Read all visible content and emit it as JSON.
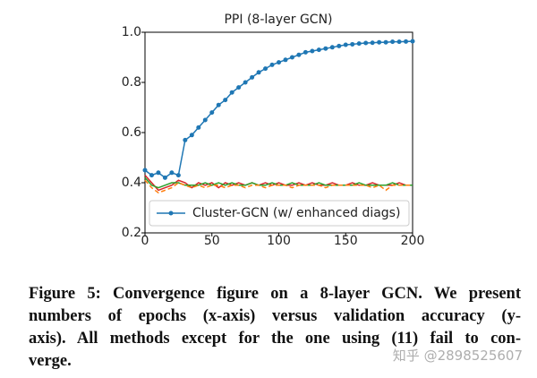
{
  "chart_data": {
    "type": "line",
    "title": "PPI (8-layer GCN)",
    "x": [
      0,
      5,
      10,
      15,
      20,
      25,
      30,
      35,
      40,
      45,
      50,
      55,
      60,
      65,
      70,
      75,
      80,
      85,
      90,
      95,
      100,
      105,
      110,
      115,
      120,
      125,
      130,
      135,
      140,
      145,
      150,
      155,
      160,
      165,
      170,
      175,
      180,
      185,
      190,
      195,
      200
    ],
    "series": [
      {
        "color": "#d62728",
        "linestyle": "solid",
        "marker": "none",
        "values": [
          0.43,
          0.4,
          0.37,
          0.38,
          0.39,
          0.41,
          0.4,
          0.38,
          0.4,
          0.39,
          0.4,
          0.38,
          0.4,
          0.39,
          0.4,
          0.39,
          0.4,
          0.39,
          0.4,
          0.39,
          0.4,
          0.39,
          0.39,
          0.4,
          0.39,
          0.4,
          0.39,
          0.39,
          0.4,
          0.39,
          0.39,
          0.4,
          0.39,
          0.39,
          0.4,
          0.39,
          0.39,
          0.39,
          0.4,
          0.39,
          0.39
        ]
      },
      {
        "color": "#2ca02c",
        "linestyle": "solid",
        "marker": "none",
        "values": [
          0.42,
          0.39,
          0.38,
          0.39,
          0.4,
          0.4,
          0.39,
          0.39,
          0.39,
          0.4,
          0.39,
          0.4,
          0.39,
          0.4,
          0.39,
          0.39,
          0.4,
          0.39,
          0.39,
          0.4,
          0.39,
          0.39,
          0.4,
          0.39,
          0.39,
          0.39,
          0.4,
          0.39,
          0.39,
          0.39,
          0.39,
          0.39,
          0.4,
          0.39,
          0.39,
          0.39,
          0.39,
          0.4,
          0.39,
          0.39,
          0.39
        ]
      },
      {
        "color": "#ff7f0e",
        "linestyle": "dashed",
        "marker": "none",
        "values": [
          0.41,
          0.38,
          0.36,
          0.37,
          0.38,
          0.4,
          0.39,
          0.38,
          0.39,
          0.38,
          0.39,
          0.39,
          0.38,
          0.39,
          0.39,
          0.38,
          0.39,
          0.39,
          0.38,
          0.39,
          0.39,
          0.39,
          0.38,
          0.39,
          0.39,
          0.39,
          0.39,
          0.38,
          0.39,
          0.39,
          0.39,
          0.39,
          0.39,
          0.39,
          0.38,
          0.39,
          0.37,
          0.39,
          0.39,
          0.39,
          0.39
        ]
      },
      {
        "name": "Cluster-GCN (w/ enhanced diags)",
        "color": "#1f77b4",
        "linestyle": "solid",
        "marker": "o",
        "values": [
          0.45,
          0.43,
          0.44,
          0.42,
          0.44,
          0.43,
          0.57,
          0.59,
          0.62,
          0.65,
          0.68,
          0.71,
          0.73,
          0.76,
          0.78,
          0.8,
          0.82,
          0.84,
          0.855,
          0.87,
          0.88,
          0.89,
          0.9,
          0.91,
          0.92,
          0.925,
          0.93,
          0.935,
          0.94,
          0.945,
          0.95,
          0.952,
          0.955,
          0.957,
          0.958,
          0.96,
          0.96,
          0.962,
          0.962,
          0.963,
          0.964
        ]
      }
    ],
    "xlim": [
      0,
      200
    ],
    "xticks": [
      0,
      50,
      100,
      150,
      200
    ],
    "ylim": [
      0.2,
      1
    ],
    "yticks": [
      0.2,
      0.4,
      0.6,
      0.8,
      {
        "value": 1,
        "label": "1.0"
      }
    ],
    "grid": false,
    "legend": "lower right"
  },
  "caption": {
    "lines": [
      "Figure 5: Convergence figure on a 8-layer GCN. We present",
      "numbers of epochs (x-axis) versus validation accuracy (y-",
      "axis). All methods except for the one using (11) fail to con-",
      "verge."
    ]
  },
  "watermark": "知乎 @2898525607"
}
